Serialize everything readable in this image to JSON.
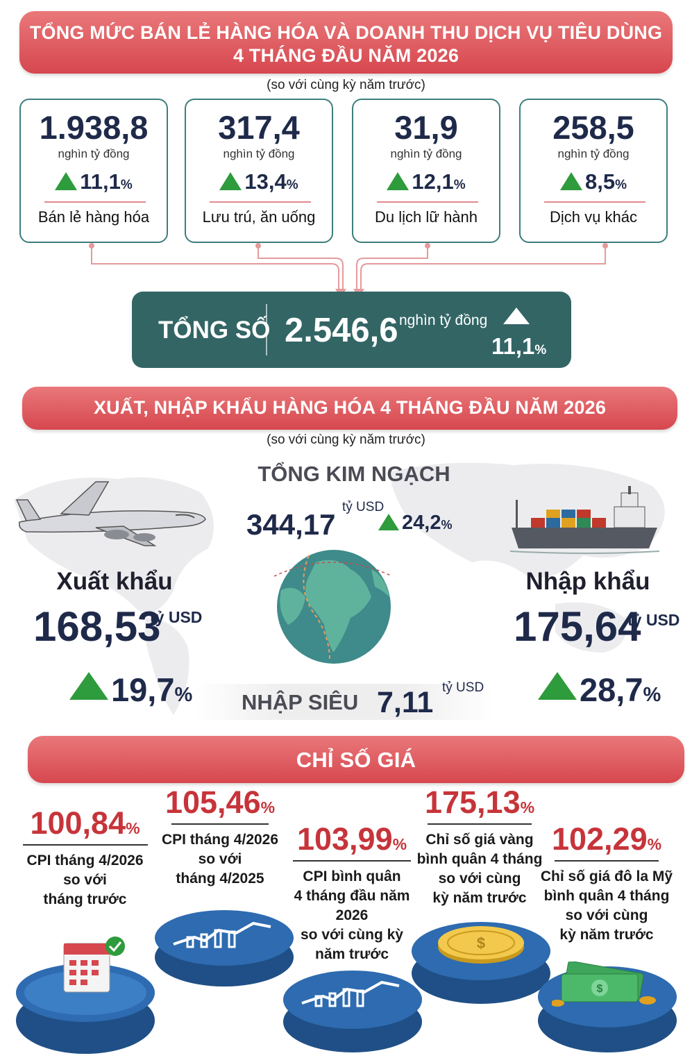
{
  "retail": {
    "title_line1": "TỔNG MỨC BÁN LẺ HÀNG HÓA VÀ DOANH THU DỊCH VỤ TIÊU DÙNG",
    "title_line2": "4 THÁNG ĐẦU NĂM 2026",
    "subtitle": "(so với cùng kỳ năm trước)",
    "cards": [
      {
        "value": "1.938,8",
        "unit": "nghìn tỷ đồng",
        "change": "11,1",
        "pct_sign": "%",
        "label": "Bán lẻ hàng hóa"
      },
      {
        "value": "317,4",
        "unit": "nghìn tỷ đồng",
        "change": "13,4",
        "pct_sign": "%",
        "label": "Lưu trú, ăn uống"
      },
      {
        "value": "31,9",
        "unit": "nghìn tỷ đồng",
        "change": "12,1",
        "pct_sign": "%",
        "label": "Du lịch lữ hành"
      },
      {
        "value": "258,5",
        "unit": "nghìn tỷ đồng",
        "change": "8,5",
        "pct_sign": "%",
        "label": "Dịch vụ khác"
      }
    ],
    "total": {
      "label": "TỔNG SỐ",
      "value": "2.546,6",
      "unit": "nghìn tỷ đồng",
      "change": "11,1",
      "pct_sign": "%"
    }
  },
  "trade": {
    "title": "XUẤT, NHẬP KHẨU HÀNG HÓA 4 THÁNG ĐẦU NĂM 2026",
    "subtitle": "(so với cùng kỳ năm trước)",
    "turnover": {
      "label": "TỔNG KIM NGẠCH",
      "value": "344,17",
      "unit": "tỷ USD",
      "change": "24,2",
      "pct_sign": "%"
    },
    "export": {
      "label": "Xuất khẩu",
      "value": "168,53",
      "unit": "tỷ USD",
      "change": "19,7",
      "pct_sign": "%"
    },
    "import": {
      "label": "Nhập khẩu",
      "value": "175,64",
      "unit": "tỷ USD",
      "change": "28,7",
      "pct_sign": "%"
    },
    "deficit": {
      "label": "NHẬP SIÊU",
      "value": "7,11",
      "unit": "tỷ USD"
    }
  },
  "prices": {
    "title": "CHỈ SỐ GIÁ",
    "items": [
      {
        "value": "100,84",
        "pct_sign": "%",
        "desc": [
          "CPI tháng 4/2026",
          "so với",
          "tháng trước"
        ],
        "icon": "calendar-icon"
      },
      {
        "value": "105,46",
        "pct_sign": "%",
        "desc": [
          "CPI tháng 4/2026",
          "so với",
          "tháng 4/2025"
        ],
        "icon": "chart-icon"
      },
      {
        "value": "103,99",
        "pct_sign": "%",
        "desc": [
          "CPI bình quân",
          "4 tháng đầu năm 2026",
          "so với cùng kỳ",
          "năm trước"
        ],
        "icon": "chart-icon"
      },
      {
        "value": "175,13",
        "pct_sign": "%",
        "desc": [
          "Chỉ số giá vàng",
          "bình quân 4 tháng",
          "so với cùng",
          "kỳ năm trước"
        ],
        "icon": "gold-coin-icon"
      },
      {
        "value": "102,29",
        "pct_sign": "%",
        "desc": [
          "Chỉ số giá đô la Mỹ",
          "bình quân 4 tháng",
          "so với cùng",
          "kỳ năm trước"
        ],
        "icon": "dollar-bills-icon"
      }
    ]
  },
  "colors": {
    "banner": "#d6474e",
    "total_box": "#336565",
    "up_arrow": "#2e9b3c",
    "price_value": "#c6343a",
    "card_border": "#3d7e7c"
  }
}
